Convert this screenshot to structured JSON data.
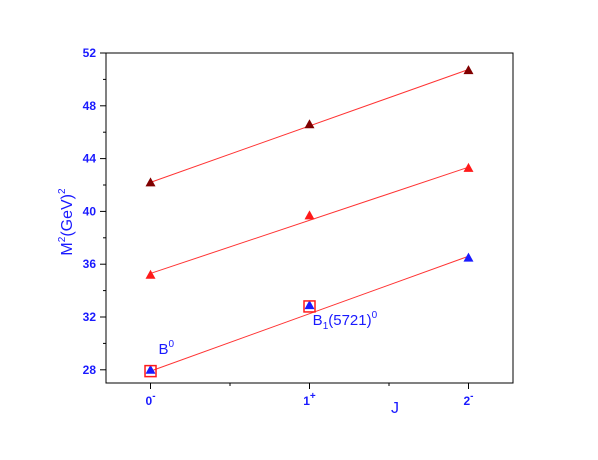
{
  "chart_data": {
    "type": "scatter",
    "title": "",
    "xlabel": "J",
    "ylabel": {
      "main": "M",
      "sup1": "2",
      "mid": "(GeV)",
      "sup2": "2"
    },
    "x_ticks": [
      {
        "value": 0,
        "base": "0",
        "sup": "-"
      },
      {
        "value": 1,
        "base": "1",
        "sup": "+"
      },
      {
        "value": 2,
        "base": "2",
        "sup": "-"
      }
    ],
    "xlim": [
      -0.28,
      2.28
    ],
    "ylim": [
      27,
      52
    ],
    "y_ticks": [
      28,
      32,
      36,
      40,
      44,
      48,
      52
    ],
    "grid": false,
    "legend": "none",
    "line_color": "#ff3333",
    "series": [
      {
        "color": "#800000",
        "points": [
          {
            "x": 0,
            "y": 42.2
          },
          {
            "x": 1,
            "y": 46.6
          },
          {
            "x": 2,
            "y": 50.7
          }
        ]
      },
      {
        "color": "#ff1a1a",
        "points": [
          {
            "x": 0,
            "y": 35.2
          },
          {
            "x": 1,
            "y": 39.7
          },
          {
            "x": 2,
            "y": 43.3
          }
        ]
      },
      {
        "color": "#1a1aff",
        "points": [
          {
            "x": 0,
            "y": 28.0
          },
          {
            "x": 1,
            "y": 32.9
          },
          {
            "x": 2,
            "y": 36.5
          }
        ]
      }
    ],
    "fit_lines": [
      {
        "x": [
          0,
          2
        ],
        "y": [
          42.2,
          50.75
        ]
      },
      {
        "x": [
          0,
          2
        ],
        "y": [
          35.3,
          43.35
        ]
      },
      {
        "x": [
          0,
          2
        ],
        "y": [
          27.9,
          36.6
        ]
      }
    ],
    "experimental_points": [
      {
        "x": 0,
        "y": 27.9,
        "color": "#ff1a1a"
      },
      {
        "x": 1,
        "y": 32.8,
        "color": "#ff1a1a"
      }
    ],
    "annotations": [
      {
        "label_base": "B",
        "label_sub": "",
        "label_rest": "",
        "label_sup": "0",
        "x": 0.05,
        "y": 29.2
      },
      {
        "label_base": "B",
        "label_sub": "1",
        "label_rest": "(5721)",
        "label_sup": "0",
        "x": 1.02,
        "y": 31.4
      }
    ]
  }
}
